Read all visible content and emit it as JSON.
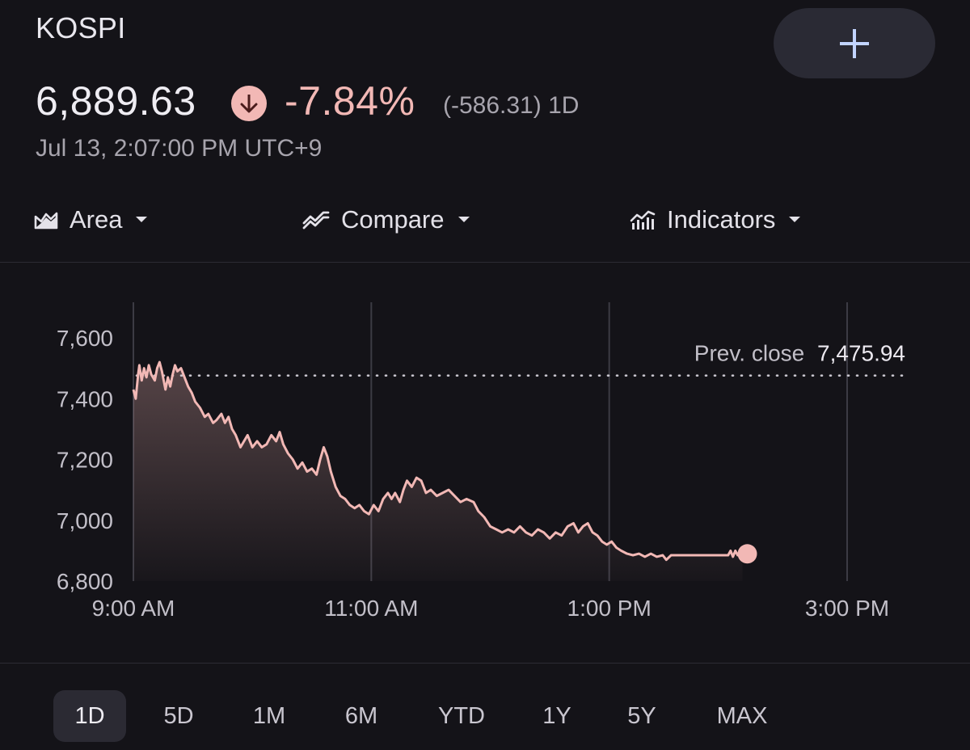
{
  "header": {
    "index_name": "KOSPI",
    "add_button_icon": "plus-icon"
  },
  "quote": {
    "price": "6,889.63",
    "direction_icon": "arrow-down-icon",
    "percent_change": "-7.84%",
    "absolute_change": "(-586.31) 1D",
    "timestamp": "Jul 13, 2:07:00 PM UTC+9"
  },
  "toolbar": {
    "area": {
      "label": "Area",
      "icon": "area-chart-icon"
    },
    "compare": {
      "label": "Compare",
      "icon": "compare-icon"
    },
    "indicators": {
      "label": "Indicators",
      "icon": "indicators-icon"
    }
  },
  "colors": {
    "background": "#141318",
    "line": "#f2b8b5",
    "gridline": "#3c3b44",
    "text_secondary": "#a7a4ad"
  },
  "chart_data": {
    "type": "area",
    "ylim": [
      6800,
      7700
    ],
    "yticks": [
      {
        "value": 7600,
        "label": "7,600"
      },
      {
        "value": 7400,
        "label": "7,400"
      },
      {
        "value": 7200,
        "label": "7,200"
      },
      {
        "value": 7000,
        "label": "7,000"
      },
      {
        "value": 6800,
        "label": "6,800"
      }
    ],
    "xlim": [
      9,
      15.5
    ],
    "xticks": [
      {
        "value": 9,
        "label": "9:00 AM"
      },
      {
        "value": 11,
        "label": "11:00 AM"
      },
      {
        "value": 13,
        "label": "1:00 PM"
      },
      {
        "value": 15,
        "label": "3:00 PM"
      }
    ],
    "prev_close": {
      "label": "Prev. close",
      "value_label": "7,475.94",
      "value": 7475.94
    },
    "last_point": {
      "x": 14.12,
      "y": 6889.63
    },
    "series": [
      {
        "points": [
          [
            9.0,
            7430
          ],
          [
            9.02,
            7400
          ],
          [
            9.04,
            7480
          ],
          [
            9.05,
            7510
          ],
          [
            9.07,
            7460
          ],
          [
            9.09,
            7500
          ],
          [
            9.11,
            7470
          ],
          [
            9.13,
            7510
          ],
          [
            9.15,
            7480
          ],
          [
            9.18,
            7460
          ],
          [
            9.2,
            7500
          ],
          [
            9.22,
            7520
          ],
          [
            9.24,
            7490
          ],
          [
            9.27,
            7430
          ],
          [
            9.29,
            7470
          ],
          [
            9.31,
            7440
          ],
          [
            9.33,
            7480
          ],
          [
            9.35,
            7510
          ],
          [
            9.37,
            7490
          ],
          [
            9.4,
            7500
          ],
          [
            9.43,
            7470
          ],
          [
            9.46,
            7440
          ],
          [
            9.49,
            7420
          ],
          [
            9.52,
            7390
          ],
          [
            9.56,
            7370
          ],
          [
            9.6,
            7340
          ],
          [
            9.63,
            7350
          ],
          [
            9.67,
            7320
          ],
          [
            9.7,
            7330
          ],
          [
            9.74,
            7350
          ],
          [
            9.77,
            7320
          ],
          [
            9.8,
            7340
          ],
          [
            9.83,
            7300
          ],
          [
            9.86,
            7280
          ],
          [
            9.9,
            7240
          ],
          [
            9.93,
            7260
          ],
          [
            9.96,
            7280
          ],
          [
            10.0,
            7240
          ],
          [
            10.04,
            7260
          ],
          [
            10.08,
            7240
          ],
          [
            10.12,
            7250
          ],
          [
            10.16,
            7280
          ],
          [
            10.2,
            7260
          ],
          [
            10.23,
            7290
          ],
          [
            10.26,
            7250
          ],
          [
            10.3,
            7220
          ],
          [
            10.34,
            7200
          ],
          [
            10.38,
            7170
          ],
          [
            10.42,
            7190
          ],
          [
            10.46,
            7160
          ],
          [
            10.5,
            7170
          ],
          [
            10.54,
            7150
          ],
          [
            10.57,
            7200
          ],
          [
            10.6,
            7240
          ],
          [
            10.63,
            7210
          ],
          [
            10.66,
            7160
          ],
          [
            10.7,
            7110
          ],
          [
            10.74,
            7080
          ],
          [
            10.78,
            7070
          ],
          [
            10.82,
            7050
          ],
          [
            10.86,
            7040
          ],
          [
            10.9,
            7050
          ],
          [
            10.94,
            7030
          ],
          [
            10.98,
            7020
          ],
          [
            11.02,
            7050
          ],
          [
            11.06,
            7030
          ],
          [
            11.1,
            7070
          ],
          [
            11.14,
            7090
          ],
          [
            11.17,
            7070
          ],
          [
            11.2,
            7090
          ],
          [
            11.24,
            7060
          ],
          [
            11.27,
            7100
          ],
          [
            11.3,
            7130
          ],
          [
            11.34,
            7110
          ],
          [
            11.38,
            7140
          ],
          [
            11.42,
            7130
          ],
          [
            11.46,
            7090
          ],
          [
            11.5,
            7100
          ],
          [
            11.55,
            7080
          ],
          [
            11.6,
            7090
          ],
          [
            11.65,
            7100
          ],
          [
            11.7,
            7080
          ],
          [
            11.75,
            7060
          ],
          [
            11.8,
            7070
          ],
          [
            11.86,
            7060
          ],
          [
            11.9,
            7030
          ],
          [
            11.95,
            7010
          ],
          [
            12.0,
            6980
          ],
          [
            12.05,
            6970
          ],
          [
            12.1,
            6960
          ],
          [
            12.15,
            6970
          ],
          [
            12.2,
            6960
          ],
          [
            12.25,
            6980
          ],
          [
            12.3,
            6960
          ],
          [
            12.35,
            6950
          ],
          [
            12.4,
            6970
          ],
          [
            12.45,
            6960
          ],
          [
            12.5,
            6940
          ],
          [
            12.55,
            6960
          ],
          [
            12.6,
            6950
          ],
          [
            12.65,
            6980
          ],
          [
            12.7,
            6990
          ],
          [
            12.74,
            6960
          ],
          [
            12.78,
            6980
          ],
          [
            12.82,
            6990
          ],
          [
            12.86,
            6960
          ],
          [
            12.9,
            6950
          ],
          [
            12.94,
            6930
          ],
          [
            12.98,
            6920
          ],
          [
            13.02,
            6930
          ],
          [
            13.06,
            6910
          ],
          [
            13.1,
            6900
          ],
          [
            13.15,
            6890
          ],
          [
            13.2,
            6885
          ],
          [
            13.25,
            6890
          ],
          [
            13.3,
            6880
          ],
          [
            13.35,
            6890
          ],
          [
            13.4,
            6880
          ],
          [
            13.45,
            6885
          ],
          [
            13.48,
            6870
          ],
          [
            13.52,
            6885
          ],
          [
            14.0,
            6885
          ],
          [
            14.02,
            6900
          ],
          [
            14.04,
            6880
          ],
          [
            14.06,
            6900
          ],
          [
            14.08,
            6885
          ],
          [
            14.12,
            6889.63
          ]
        ]
      }
    ]
  },
  "ranges": [
    {
      "label": "1D",
      "active": true
    },
    {
      "label": "5D",
      "active": false
    },
    {
      "label": "1M",
      "active": false
    },
    {
      "label": "6M",
      "active": false
    },
    {
      "label": "YTD",
      "active": false
    },
    {
      "label": "1Y",
      "active": false
    },
    {
      "label": "5Y",
      "active": false
    },
    {
      "label": "MAX",
      "active": false
    }
  ]
}
